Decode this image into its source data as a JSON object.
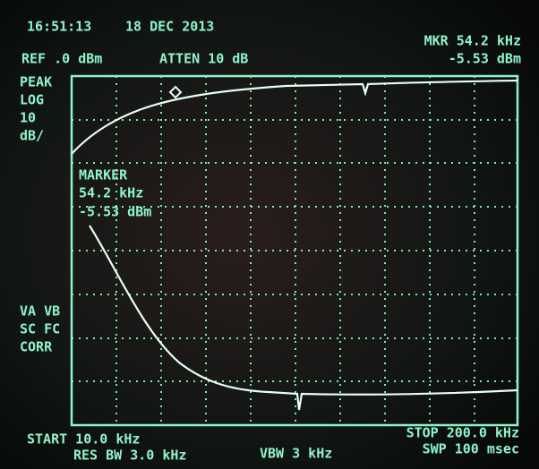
{
  "header": {
    "time": "16:51:13",
    "date": "18 DEC 2013",
    "ref": "REF .0 dBm",
    "atten": "ATTEN 10 dB",
    "marker_freq": "MKR 54.2 kHz",
    "marker_level": "-5.53 dBm"
  },
  "left_labels": {
    "top": [
      "PEAK",
      "LOG",
      "10",
      "dB/"
    ],
    "bottom": [
      "VA VB",
      "SC FC",
      "CORR"
    ]
  },
  "marker_box": {
    "title": "MARKER",
    "freq": "54.2 kHz",
    "level": "-5.53 dBm"
  },
  "footer": {
    "start": "START 10.0 kHz",
    "res_bw": "RES BW 3.0 kHz",
    "vbw": "VBW 3 kHz",
    "stop": "STOP 200.0 kHz",
    "sweep": "SWP 100 msec"
  }
}
